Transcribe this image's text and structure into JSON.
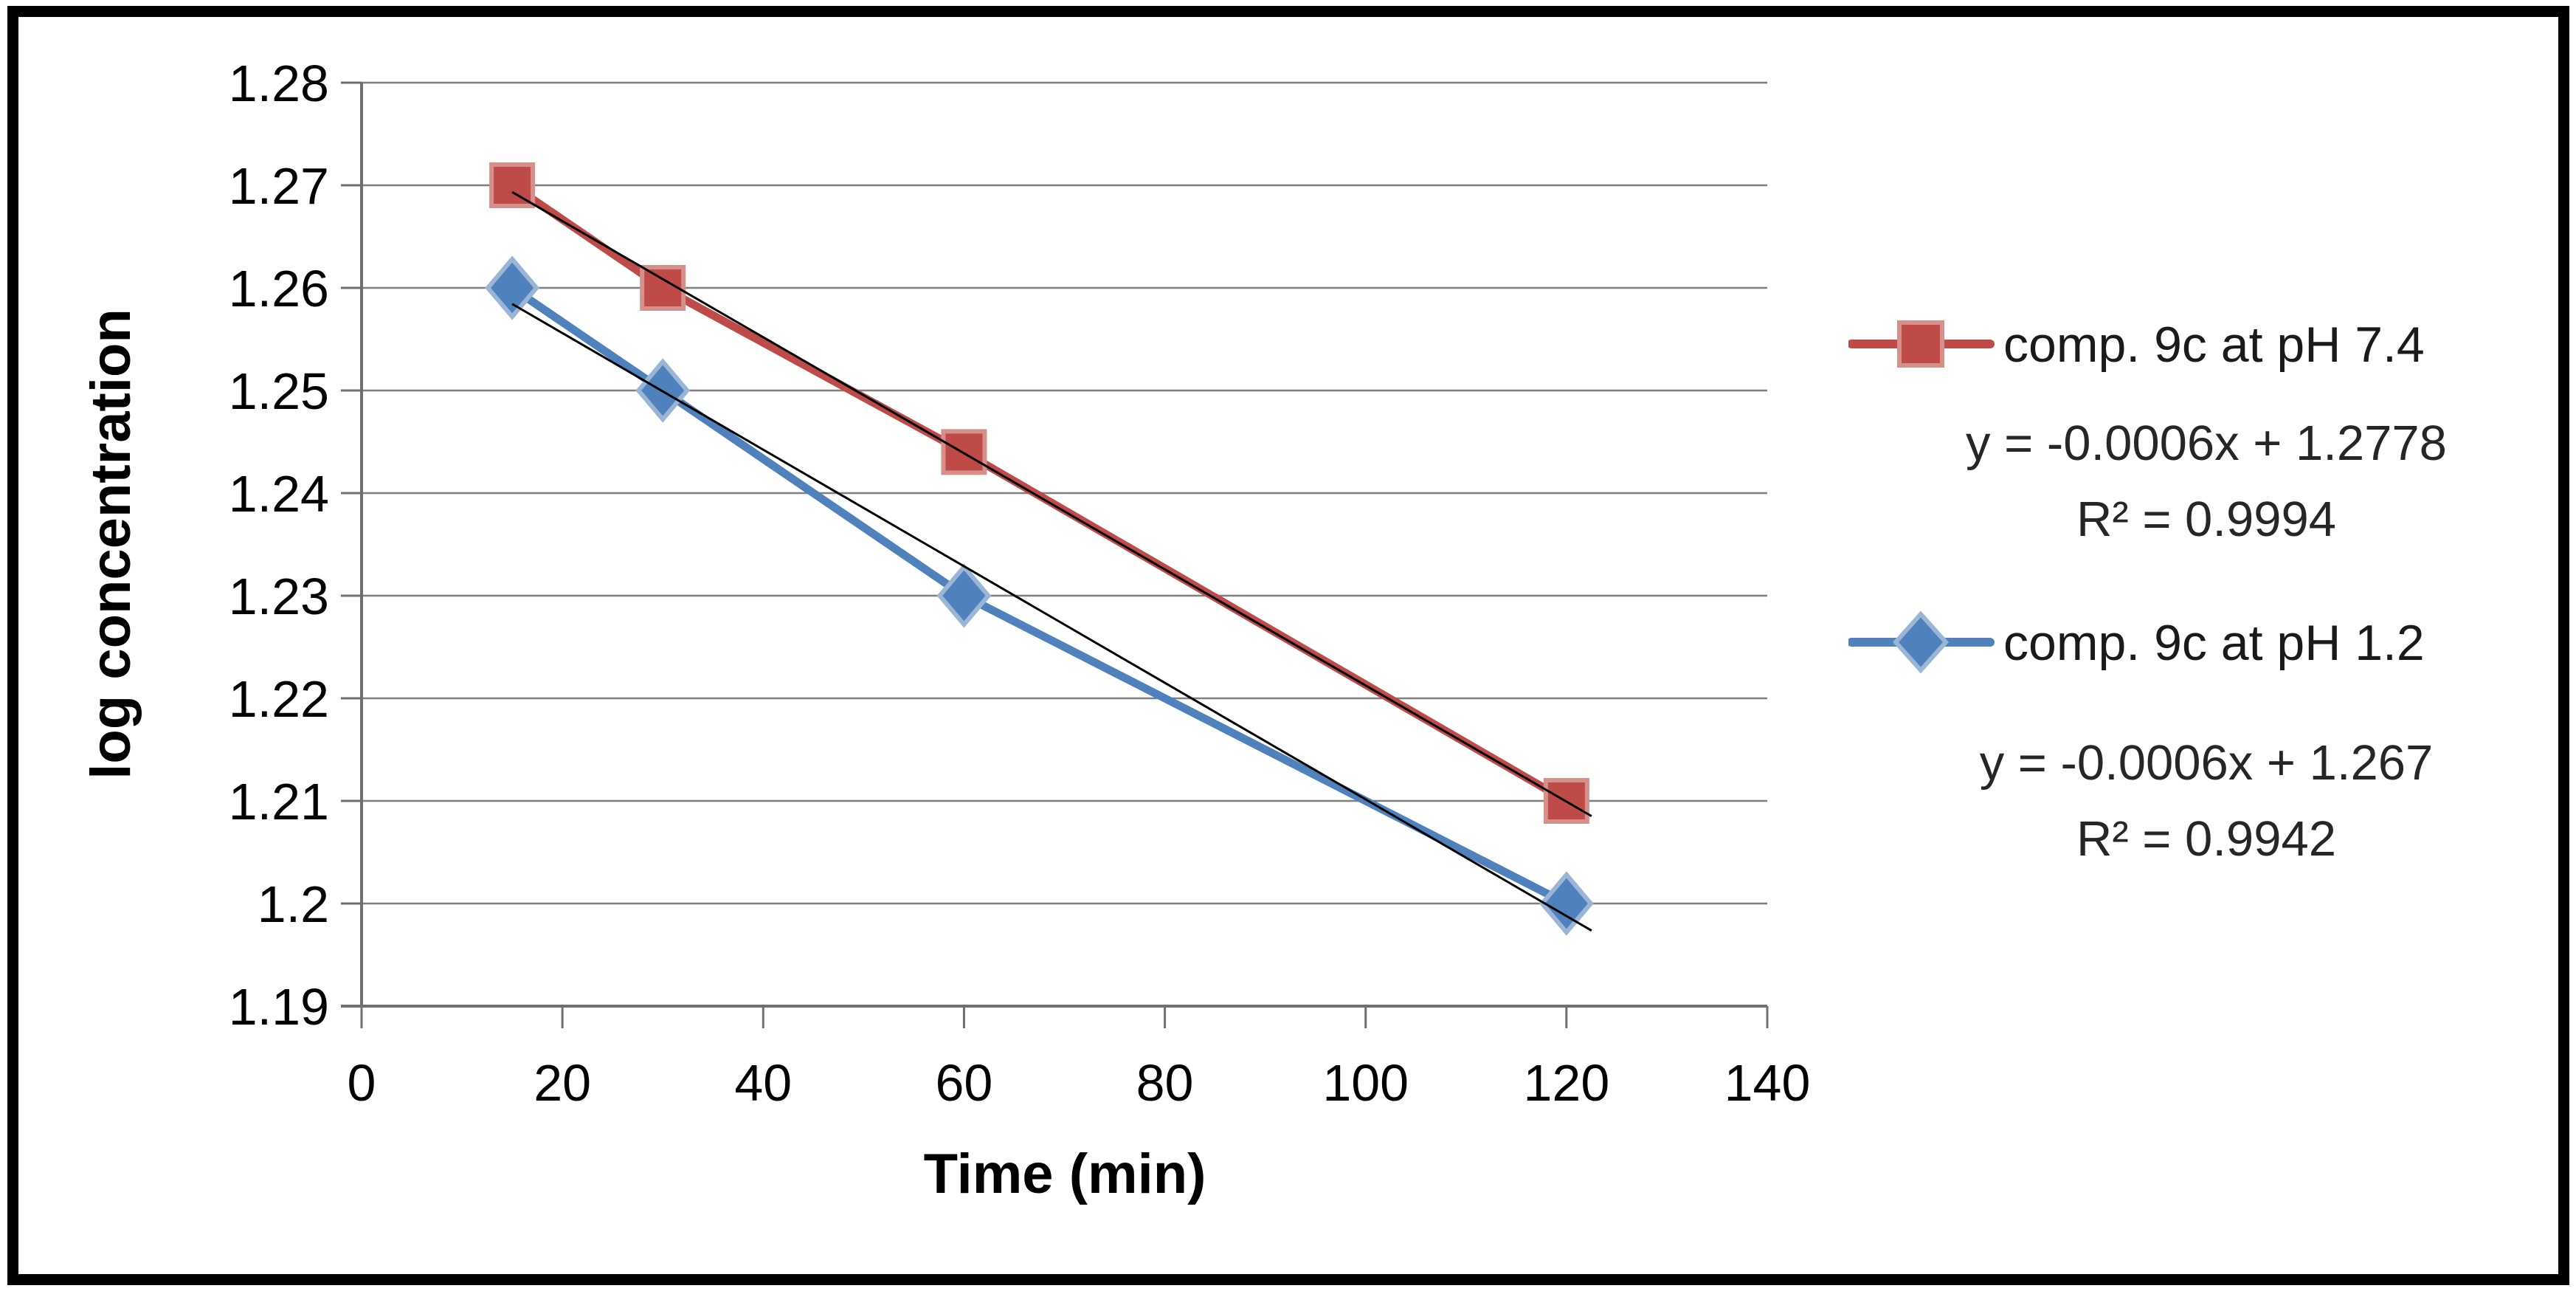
{
  "chart_data": {
    "type": "line",
    "title": "",
    "xlabel": "Time (min)",
    "ylabel": "log concentration",
    "x": [
      15,
      30,
      60,
      120
    ],
    "xlim": [
      0,
      140
    ],
    "xticks": [
      0,
      20,
      40,
      60,
      80,
      100,
      120,
      140
    ],
    "ylim": [
      1.19,
      1.28
    ],
    "yticks": [
      1.19,
      1.2,
      1.21,
      1.22,
      1.23,
      1.24,
      1.25,
      1.26,
      1.27,
      1.28
    ],
    "grid": true,
    "legend_position": "right",
    "style": {
      "grid_color": "#7F7F7F",
      "axis_color": "#6F6F6F",
      "trendline_color": "#000000"
    },
    "series": [
      {
        "name": "comp. 9c at pH 7.4",
        "color": "#BE4B48",
        "halo": "#D6908C",
        "marker": "square",
        "values": [
          1.27,
          1.26,
          1.244,
          1.21
        ],
        "trendline": {
          "equation": "y = -0.0006x + 1.2778",
          "r2": "R² = 0.9994"
        }
      },
      {
        "name": "comp. 9c at pH 1.2",
        "color": "#4F81BD",
        "halo": "#9AB5D6",
        "marker": "diamond",
        "values": [
          1.26,
          1.25,
          1.23,
          1.2
        ],
        "trendline": {
          "equation": "y = -0.0006x + 1.267",
          "r2": "R² = 0.9942"
        }
      }
    ]
  }
}
